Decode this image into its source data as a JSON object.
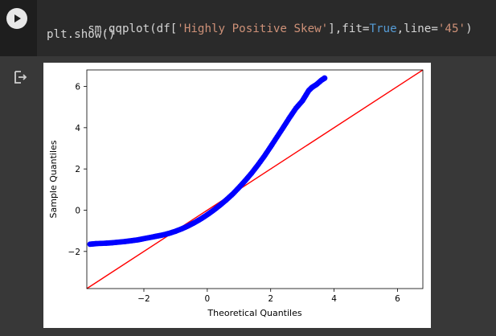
{
  "code": {
    "line1_parts": [
      {
        "text": "sm.qqplot(df[",
        "cls": ""
      },
      {
        "text": "'Highly Positive Skew'",
        "cls": "str"
      },
      {
        "text": "],fit=",
        "cls": ""
      },
      {
        "text": "True",
        "cls": "kw"
      },
      {
        "text": ",line=",
        "cls": ""
      },
      {
        "text": "'45'",
        "cls": "str"
      },
      {
        "text": ")",
        "cls": ""
      }
    ],
    "line2": "plt.show()"
  },
  "icons": {
    "run": "play-icon",
    "output": "output-redirect-icon"
  },
  "chart_data": {
    "type": "scatter",
    "xlabel": "Theoretical Quantiles",
    "ylabel": "Sample Quantiles",
    "xlim": [
      -3.8,
      6.8
    ],
    "ylim": [
      -3.8,
      6.8
    ],
    "xticks": [
      -2,
      0,
      2,
      4,
      6
    ],
    "yticks": [
      -2,
      0,
      2,
      4,
      6
    ],
    "xtick_labels": [
      "−2",
      "0",
      "2",
      "4",
      "6"
    ],
    "ytick_labels": [
      "−2",
      "0",
      "2",
      "4",
      "6"
    ],
    "reference_line": {
      "type": "45-degree",
      "color": "#ff0000"
    },
    "marker_color": "#0000ff",
    "x": [
      -3.7,
      -3.5,
      -3.2,
      -3.0,
      -2.8,
      -2.6,
      -2.4,
      -2.2,
      -2.0,
      -1.8,
      -1.6,
      -1.4,
      -1.2,
      -1.0,
      -0.8,
      -0.6,
      -0.4,
      -0.2,
      0.0,
      0.2,
      0.4,
      0.6,
      0.8,
      1.0,
      1.2,
      1.4,
      1.6,
      1.8,
      2.0,
      2.2,
      2.4,
      2.6,
      2.8,
      3.0,
      3.1,
      3.2,
      3.3,
      3.45,
      3.6,
      3.7
    ],
    "y": [
      -1.65,
      -1.62,
      -1.6,
      -1.58,
      -1.55,
      -1.52,
      -1.48,
      -1.44,
      -1.38,
      -1.32,
      -1.26,
      -1.2,
      -1.12,
      -1.02,
      -0.9,
      -0.76,
      -0.6,
      -0.42,
      -0.22,
      0.0,
      0.24,
      0.5,
      0.78,
      1.1,
      1.44,
      1.8,
      2.2,
      2.62,
      3.08,
      3.55,
      4.02,
      4.5,
      4.95,
      5.3,
      5.55,
      5.8,
      5.95,
      6.1,
      6.3,
      6.4
    ]
  }
}
